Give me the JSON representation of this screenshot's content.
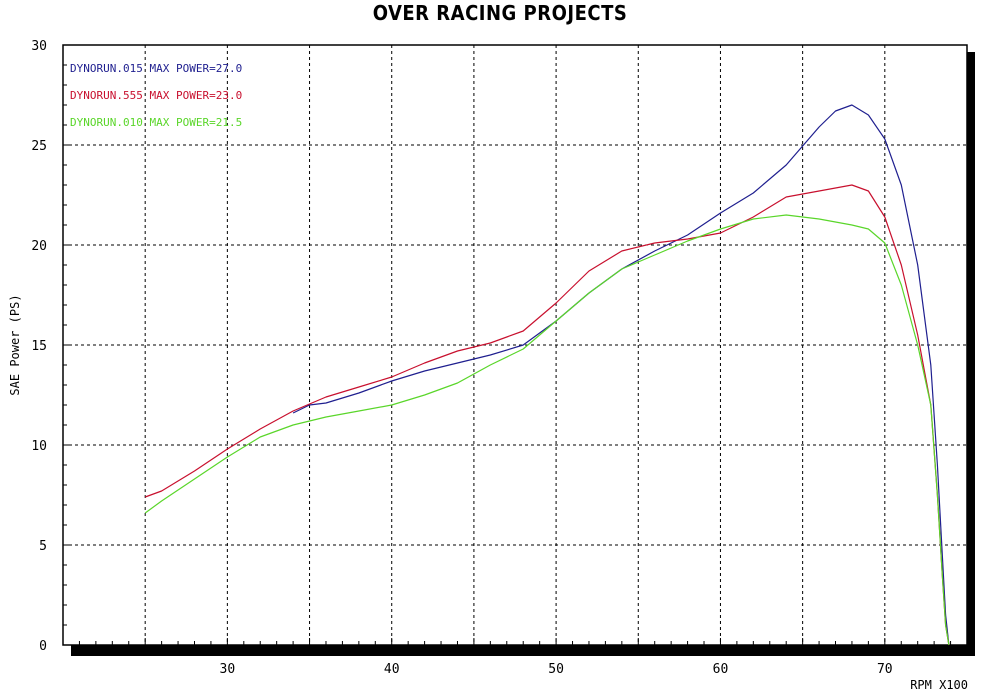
{
  "chart_data": {
    "type": "line",
    "title": "OVER RACING PROJECTS",
    "xlabel": "RPM X100",
    "ylabel": "SAE Power (PS)",
    "xlim": [
      20,
      75
    ],
    "ylim": [
      0,
      30
    ],
    "x_ticks": [
      30,
      40,
      50,
      60,
      70
    ],
    "y_ticks": [
      0,
      5,
      10,
      15,
      20,
      25,
      30
    ],
    "grid": true,
    "legend_position": "top-left",
    "series": [
      {
        "name": "DYNORUN.015",
        "legend_label": "DYNORUN.015  MAX POWER=27.0",
        "color": "#1f1f8f",
        "x": [
          34,
          35,
          36,
          38,
          40,
          42,
          44,
          46,
          48,
          50,
          52,
          54,
          56,
          58,
          60,
          62,
          64,
          66,
          67,
          68,
          69,
          70,
          71,
          72,
          72.8,
          73.2,
          73.5,
          73.7,
          73.9
        ],
        "y": [
          11.6,
          12.0,
          12.1,
          12.6,
          13.2,
          13.7,
          14.1,
          14.5,
          15.0,
          16.2,
          17.6,
          18.8,
          19.7,
          20.5,
          21.6,
          22.6,
          24.0,
          25.9,
          26.7,
          27.0,
          26.5,
          25.3,
          23.0,
          19.0,
          14.0,
          9.0,
          4.5,
          1.5,
          0.0
        ]
      },
      {
        "name": "DYNORUN.555",
        "legend_label": "DYNORUN.555  MAX POWER=23.0",
        "color": "#c8102e",
        "x": [
          25,
          26,
          28,
          30,
          32,
          34,
          36,
          38,
          40,
          42,
          44,
          46,
          48,
          50,
          52,
          54,
          56,
          58,
          60,
          62,
          64,
          66,
          68,
          69,
          70,
          71,
          72,
          72.8,
          73.2,
          73.5,
          73.7,
          73.9
        ],
        "y": [
          7.4,
          7.7,
          8.7,
          9.8,
          10.8,
          11.7,
          12.4,
          12.9,
          13.4,
          14.1,
          14.7,
          15.1,
          15.7,
          17.1,
          18.7,
          19.7,
          20.1,
          20.3,
          20.6,
          21.4,
          22.4,
          22.7,
          23.0,
          22.7,
          21.4,
          19.0,
          15.5,
          12.0,
          7.5,
          3.5,
          1.0,
          0.0
        ]
      },
      {
        "name": "DYNORUN.010",
        "legend_label": "DYNORUN.010  MAX POWER=21.5",
        "color": "#5ad62a",
        "x": [
          25,
          26,
          28,
          30,
          32,
          34,
          36,
          38,
          40,
          42,
          44,
          46,
          48,
          50,
          52,
          54,
          56,
          58,
          60,
          62,
          64,
          66,
          68,
          69,
          70,
          71,
          72,
          72.8,
          73.2,
          73.5,
          73.7,
          73.9
        ],
        "y": [
          6.6,
          7.2,
          8.3,
          9.4,
          10.4,
          11.0,
          11.4,
          11.7,
          12.0,
          12.5,
          13.1,
          14.0,
          14.8,
          16.2,
          17.6,
          18.8,
          19.5,
          20.2,
          20.8,
          21.3,
          21.5,
          21.3,
          21.0,
          20.8,
          20.1,
          18.0,
          15.0,
          12.0,
          7.5,
          3.5,
          1.0,
          0.0
        ]
      }
    ]
  }
}
